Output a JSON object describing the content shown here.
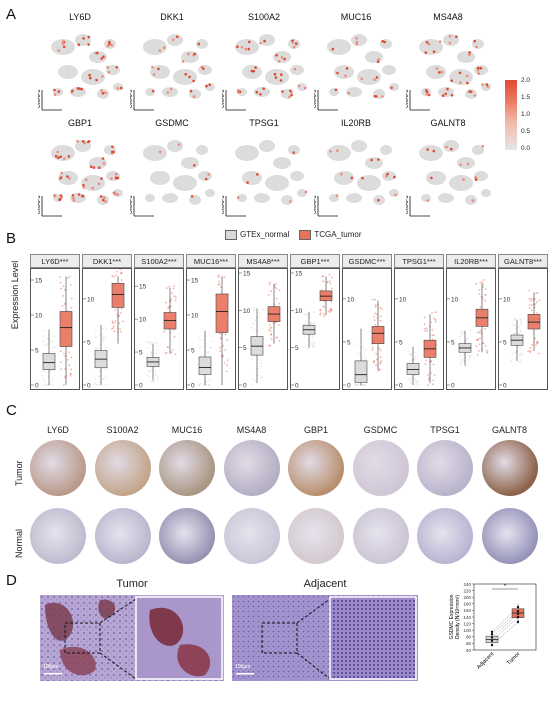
{
  "panels": {
    "a": "A",
    "b": "B",
    "c": "C",
    "d": "D"
  },
  "panel_a": {
    "genes_row1": [
      "LY6D",
      "DKK1",
      "S100A2",
      "MUC16",
      "MS4A8"
    ],
    "genes_row2": [
      "GBP1",
      "GSDMC",
      "TPSG1",
      "IL20RB",
      "GALNT8"
    ],
    "axis_x": "UMAP1",
    "axis_y": "UMAP2",
    "colorbar_ticks": [
      "2.0",
      "1.5",
      "1.0",
      "0.5",
      "0.0"
    ],
    "colors": {
      "high": "#df4a33",
      "low": "#e6e6e6"
    }
  },
  "panel_b": {
    "legend": [
      "GTEx_normal",
      "TCGA_tumor"
    ],
    "ylabel": "Expression Level",
    "colors": {
      "normal": "#d9d9d9",
      "tumor": "#e8735c"
    }
  },
  "chart_data": {
    "type": "box",
    "ylabel": "Expression Level",
    "series": [
      {
        "name": "GTEx_normal"
      },
      {
        "name": "TCGA_tumor"
      }
    ],
    "facets": [
      {
        "label": "LY6D***",
        "ticks": [
          0,
          5,
          10,
          15
        ],
        "ylim": [
          0,
          16
        ],
        "normal": [
          2.2,
          3.2,
          4.5
        ],
        "tumor": [
          5.5,
          8.2,
          10.5
        ]
      },
      {
        "label": "DKK1***",
        "ticks": [
          0,
          5,
          10
        ],
        "ylim": [
          0,
          13
        ],
        "normal": [
          2.0,
          3.0,
          4.0
        ],
        "tumor": [
          9.0,
          10.5,
          11.8
        ]
      },
      {
        "label": "S100A2***",
        "ticks": [
          0,
          5,
          10,
          15
        ],
        "ylim": [
          0,
          17
        ],
        "normal": [
          2.8,
          3.5,
          4.2
        ],
        "tumor": [
          8.5,
          9.8,
          11.0
        ]
      },
      {
        "label": "MUC16***",
        "ticks": [
          0,
          5,
          10,
          15
        ],
        "ylim": [
          0,
          16
        ],
        "normal": [
          1.5,
          2.5,
          4.0
        ],
        "tumor": [
          7.5,
          10.5,
          13.0
        ]
      },
      {
        "label": "MS4A8***",
        "ticks": [
          0,
          5,
          10,
          15
        ],
        "ylim": [
          0,
          15
        ],
        "normal": [
          4.0,
          5.2,
          6.5
        ],
        "tumor": [
          8.5,
          9.5,
          10.5
        ]
      },
      {
        "label": "GBP1***",
        "ticks": [
          0,
          5,
          10,
          15
        ],
        "ylim": [
          0,
          15
        ],
        "normal": [
          6.8,
          7.4,
          8.0
        ],
        "tumor": [
          11.3,
          11.9,
          12.6
        ]
      },
      {
        "label": "GSDMC***",
        "ticks": [
          0,
          5,
          10
        ],
        "ylim": [
          0,
          13
        ],
        "normal": [
          0.3,
          1.2,
          2.8
        ],
        "tumor": [
          4.8,
          6.0,
          6.8
        ]
      },
      {
        "label": "TPSG1***",
        "ticks": [
          0,
          5,
          10
        ],
        "ylim": [
          0,
          13
        ],
        "normal": [
          1.2,
          1.8,
          2.5
        ],
        "tumor": [
          3.2,
          4.2,
          5.2
        ]
      },
      {
        "label": "IL20RB***",
        "ticks": [
          0,
          5,
          10
        ],
        "ylim": [
          0,
          13
        ],
        "normal": [
          3.8,
          4.3,
          4.8
        ],
        "tumor": [
          6.8,
          7.8,
          8.8
        ]
      },
      {
        "label": "GALNT8***",
        "ticks": [
          0,
          5,
          10
        ],
        "ylim": [
          0,
          13
        ],
        "normal": [
          4.6,
          5.2,
          5.8
        ],
        "tumor": [
          6.5,
          7.3,
          8.2
        ]
      }
    ]
  },
  "panel_c": {
    "genes": [
      "LY6D",
      "S100A2",
      "MUC16",
      "MS4A8",
      "GBP1",
      "GSDMC",
      "TPSG1",
      "GALNT8"
    ],
    "row_tumor": "Tumor",
    "row_normal": "Normal",
    "tumor_colors": [
      "#b89a8a",
      "#c2a589",
      "#a99683",
      "#b4aec4",
      "#b88f6e",
      "#cfc6d6",
      "#b9b4cc",
      "#8c6248"
    ],
    "normal_colors": [
      "#bdb8cc",
      "#b6b4cc",
      "#8f8cae",
      "#c7c4d6",
      "#d2c7cc",
      "#c9c2d2",
      "#b6b0d0",
      "#8e8cb5"
    ]
  },
  "panel_d": {
    "title_tumor": "Tumor",
    "title_adjacent": "Adjacent",
    "scale_left": "100μm",
    "scale_right": "100μm",
    "chart": {
      "ylabel_1": "GSDMC Expression",
      "ylabel_2": "Density (N/10⁶mm²)",
      "yticks": [
        "40",
        "60",
        "80",
        "100",
        "120",
        "140",
        "160",
        "180",
        "200",
        "220",
        "240"
      ],
      "categories": [
        "Adjacent",
        "Tumor"
      ],
      "sig": "*",
      "adjacent": [
        50,
        62,
        72,
        82,
        95
      ],
      "tumor": [
        120,
        138,
        152,
        165,
        180
      ]
    }
  }
}
